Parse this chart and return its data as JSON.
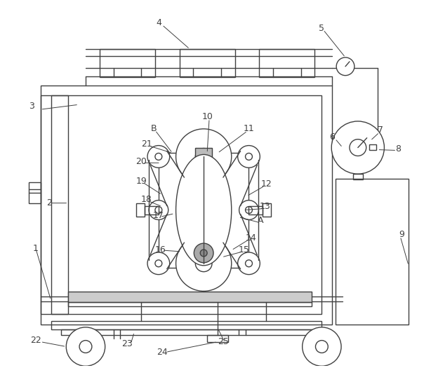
{
  "bg_color": "#ffffff",
  "line_color": "#404040",
  "fig_width": 6.14,
  "fig_height": 5.25,
  "dpi": 100
}
